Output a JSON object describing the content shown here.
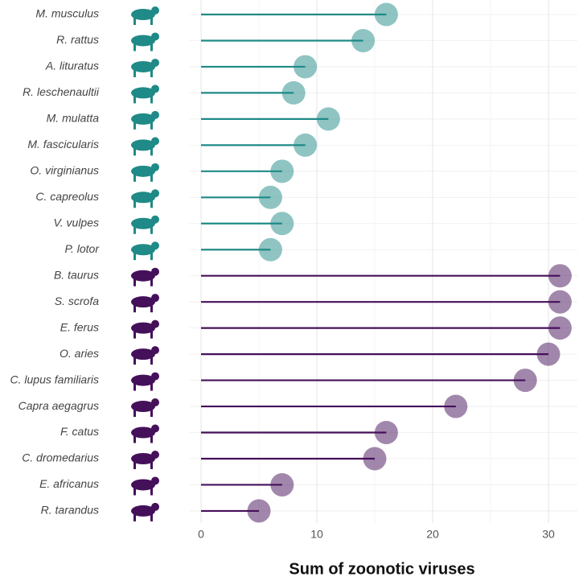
{
  "chart_data": {
    "type": "lollipop",
    "x_label": "Sum of zoonotic viruses",
    "series": [
      {
        "color": "#1f8a87",
        "categories": [
          "M. musculus",
          "R. rattus",
          "A. lituratus",
          "R. leschenaultii",
          "M. mulatta",
          "M. fascicularis",
          "O. virginianus",
          "C. capreolus",
          "V. vulpes",
          "P. lotor"
        ],
        "values": [
          16,
          14,
          9,
          8,
          11,
          9,
          7,
          6,
          7,
          6
        ]
      },
      {
        "color": "#45105a",
        "categories": [
          "B. taurus",
          "S. scrofa",
          "E. ferus",
          "O. aries",
          "C. lupus familiaris",
          "Capra aegagrus",
          "F. catus",
          "C. dromedarius",
          "E. africanus",
          "R. tarandus"
        ],
        "values": [
          31,
          31,
          31,
          30,
          28,
          22,
          16,
          15,
          7,
          5
        ]
      }
    ],
    "xlim": [
      -1,
      32.5
    ],
    "xticks": [
      0,
      10,
      20,
      30
    ],
    "xminorticks": [
      5,
      15,
      25
    ],
    "grid": true
  }
}
